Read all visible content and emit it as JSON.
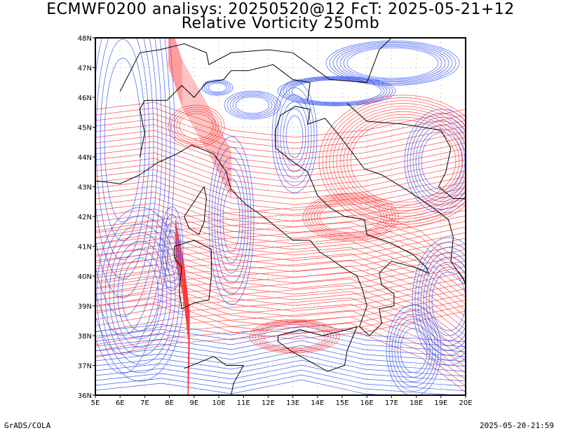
{
  "title_line1": "ECMWF0200 analisys: 20250520@12 FcT: 2025-05-21+12",
  "title_line2": "Relative Vorticity 250mb",
  "footer_left": "GrADS/COLA",
  "footer_right": "2025-05-20-21:59",
  "map": {
    "lon_range": [
      5,
      20
    ],
    "lat_range": [
      36,
      48
    ],
    "lon_labels": [
      "5E",
      "6E",
      "7E",
      "8E",
      "9E",
      "10E",
      "11E",
      "12E",
      "13E",
      "14E",
      "15E",
      "16E",
      "17E",
      "18E",
      "19E",
      "20E"
    ],
    "lat_labels": [
      "36N",
      "37N",
      "38N",
      "39N",
      "40N",
      "41N",
      "42N",
      "43N",
      "44N",
      "45N",
      "46N",
      "47N",
      "48N"
    ],
    "colors": {
      "positive_vorticity": "#ff3333",
      "negative_vorticity": "#2244ee",
      "coastline": "#000000",
      "grid": "#999999"
    }
  }
}
